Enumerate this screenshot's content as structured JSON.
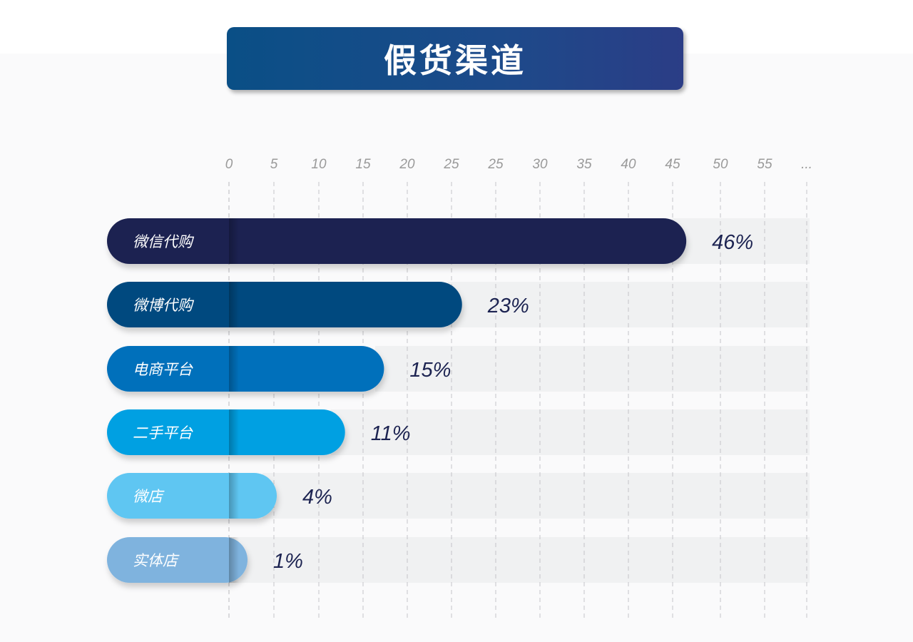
{
  "chart_data": {
    "type": "bar",
    "orientation": "horizontal",
    "title": "假货渠道",
    "x_tick_labels": [
      "0",
      "5",
      "10",
      "15",
      "20",
      "25",
      "25",
      "30",
      "35",
      "40",
      "45",
      "50",
      "55",
      "..."
    ],
    "categories": [
      "微信代购",
      "微博代购",
      "电商平台",
      "二手平台",
      "微店",
      "实体店"
    ],
    "values": [
      46,
      23,
      15,
      11,
      4,
      1
    ],
    "value_labels": [
      "46%",
      "23%",
      "15%",
      "11%",
      "4%",
      "1%"
    ],
    "colors": [
      "#1c2351",
      "#03497f",
      "#0470bb",
      "#04a0e2",
      "#5ec6f2",
      "#7fb3de"
    ],
    "grid": "vertical dashed",
    "unit": "%"
  }
}
